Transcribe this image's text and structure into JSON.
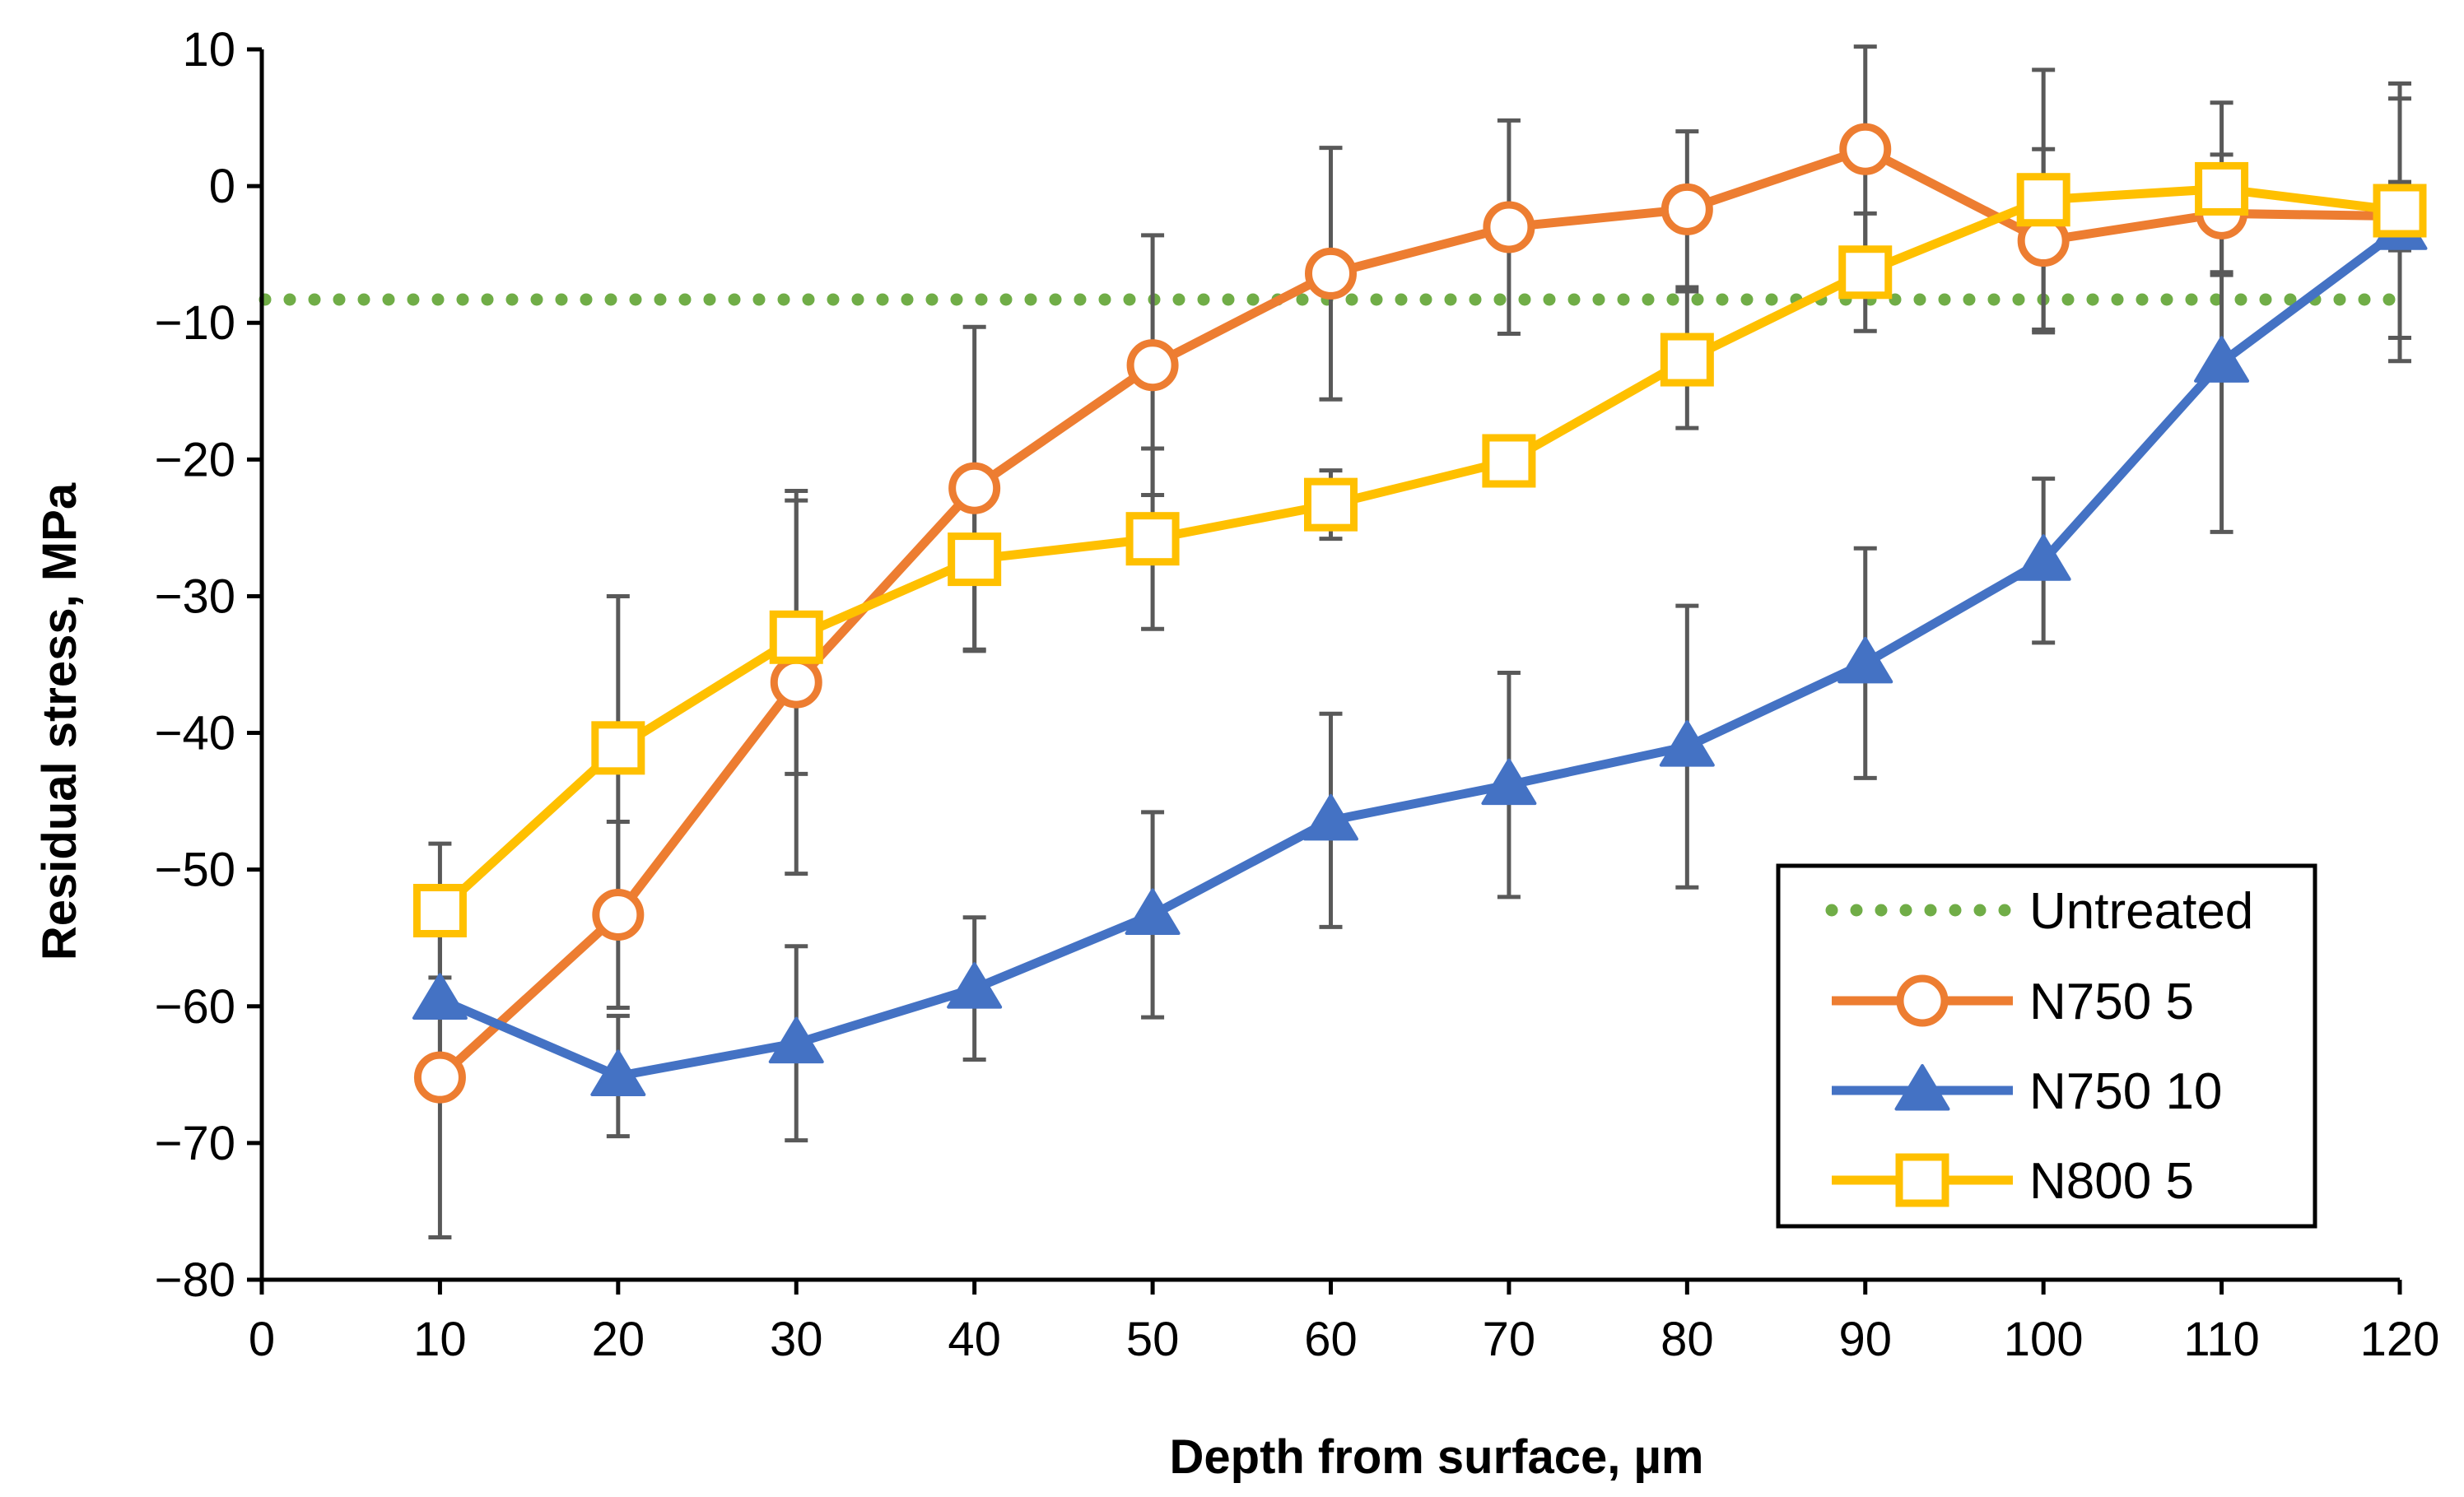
{
  "chart_data": {
    "type": "line",
    "title": "",
    "xlabel": "Depth from surface, µm",
    "ylabel": "Residual stress, MPa",
    "xlim": [
      0,
      120
    ],
    "ylim": [
      -80,
      10
    ],
    "xticks": [
      0,
      10,
      20,
      30,
      40,
      50,
      60,
      70,
      80,
      90,
      100,
      110,
      120
    ],
    "yticks": [
      10,
      0,
      -10,
      -20,
      -30,
      -40,
      -50,
      -60,
      -70,
      -80
    ],
    "tick_labels_x": [
      "0",
      "10",
      "20",
      "30",
      "40",
      "50",
      "60",
      "70",
      "80",
      "90",
      "100",
      "110",
      "120"
    ],
    "tick_labels_y": [
      "10",
      "0",
      "−10",
      "−20",
      "−30",
      "−40",
      "−50",
      "−60",
      "−70",
      "−80"
    ],
    "legend_position": "bottom-right",
    "reference_line": {
      "name": "Untreated",
      "value": -8.3,
      "color": "#70ad47",
      "style": "dotted"
    },
    "series": [
      {
        "name": "N750 5",
        "color": "#ed7d31",
        "marker": "circle",
        "x": [
          10,
          20,
          30,
          40,
          50,
          60,
          70,
          80,
          90,
          100,
          110,
          120
        ],
        "values": [
          -65.2,
          -53.3,
          -36.3,
          -22.1,
          -13.1,
          -6.4,
          -3.0,
          -1.7,
          2.7,
          -4.0,
          -2.0,
          -2.2
        ],
        "errors": [
          11.7,
          6.8,
          14.0,
          11.8,
          9.5,
          9.2,
          7.8,
          5.7,
          7.5,
          6.7,
          4.3,
          2.5
        ]
      },
      {
        "name": "N750 10",
        "color": "#4472c4",
        "marker": "triangle",
        "x": [
          10,
          20,
          30,
          40,
          50,
          60,
          70,
          80,
          90,
          100,
          110,
          120
        ],
        "values": [
          -59.5,
          -65.1,
          -62.7,
          -58.7,
          -53.3,
          -46.4,
          -43.8,
          -41.0,
          -34.9,
          -27.4,
          -12.9,
          -3.2
        ],
        "errors": [
          5.9,
          4.4,
          7.1,
          5.2,
          7.5,
          7.8,
          8.2,
          10.3,
          8.4,
          6.0,
          12.4,
          9.6
        ]
      },
      {
        "name": "N800 5",
        "color": "#ffc000",
        "marker": "square",
        "x": [
          10,
          20,
          30,
          40,
          50,
          60,
          70,
          80,
          90,
          100,
          110,
          120
        ],
        "values": [
          -53.0,
          -41.1,
          -33.0,
          -27.3,
          -25.8,
          -23.3,
          -20.1,
          -12.7,
          -6.3,
          -1.0,
          -0.2,
          -1.8
        ],
        "errors": [
          4.9,
          11.1,
          10.0,
          6.7,
          6.6,
          2.5,
          0.4,
          5.0,
          4.3,
          9.5,
          6.3,
          9.3
        ]
      }
    ]
  }
}
